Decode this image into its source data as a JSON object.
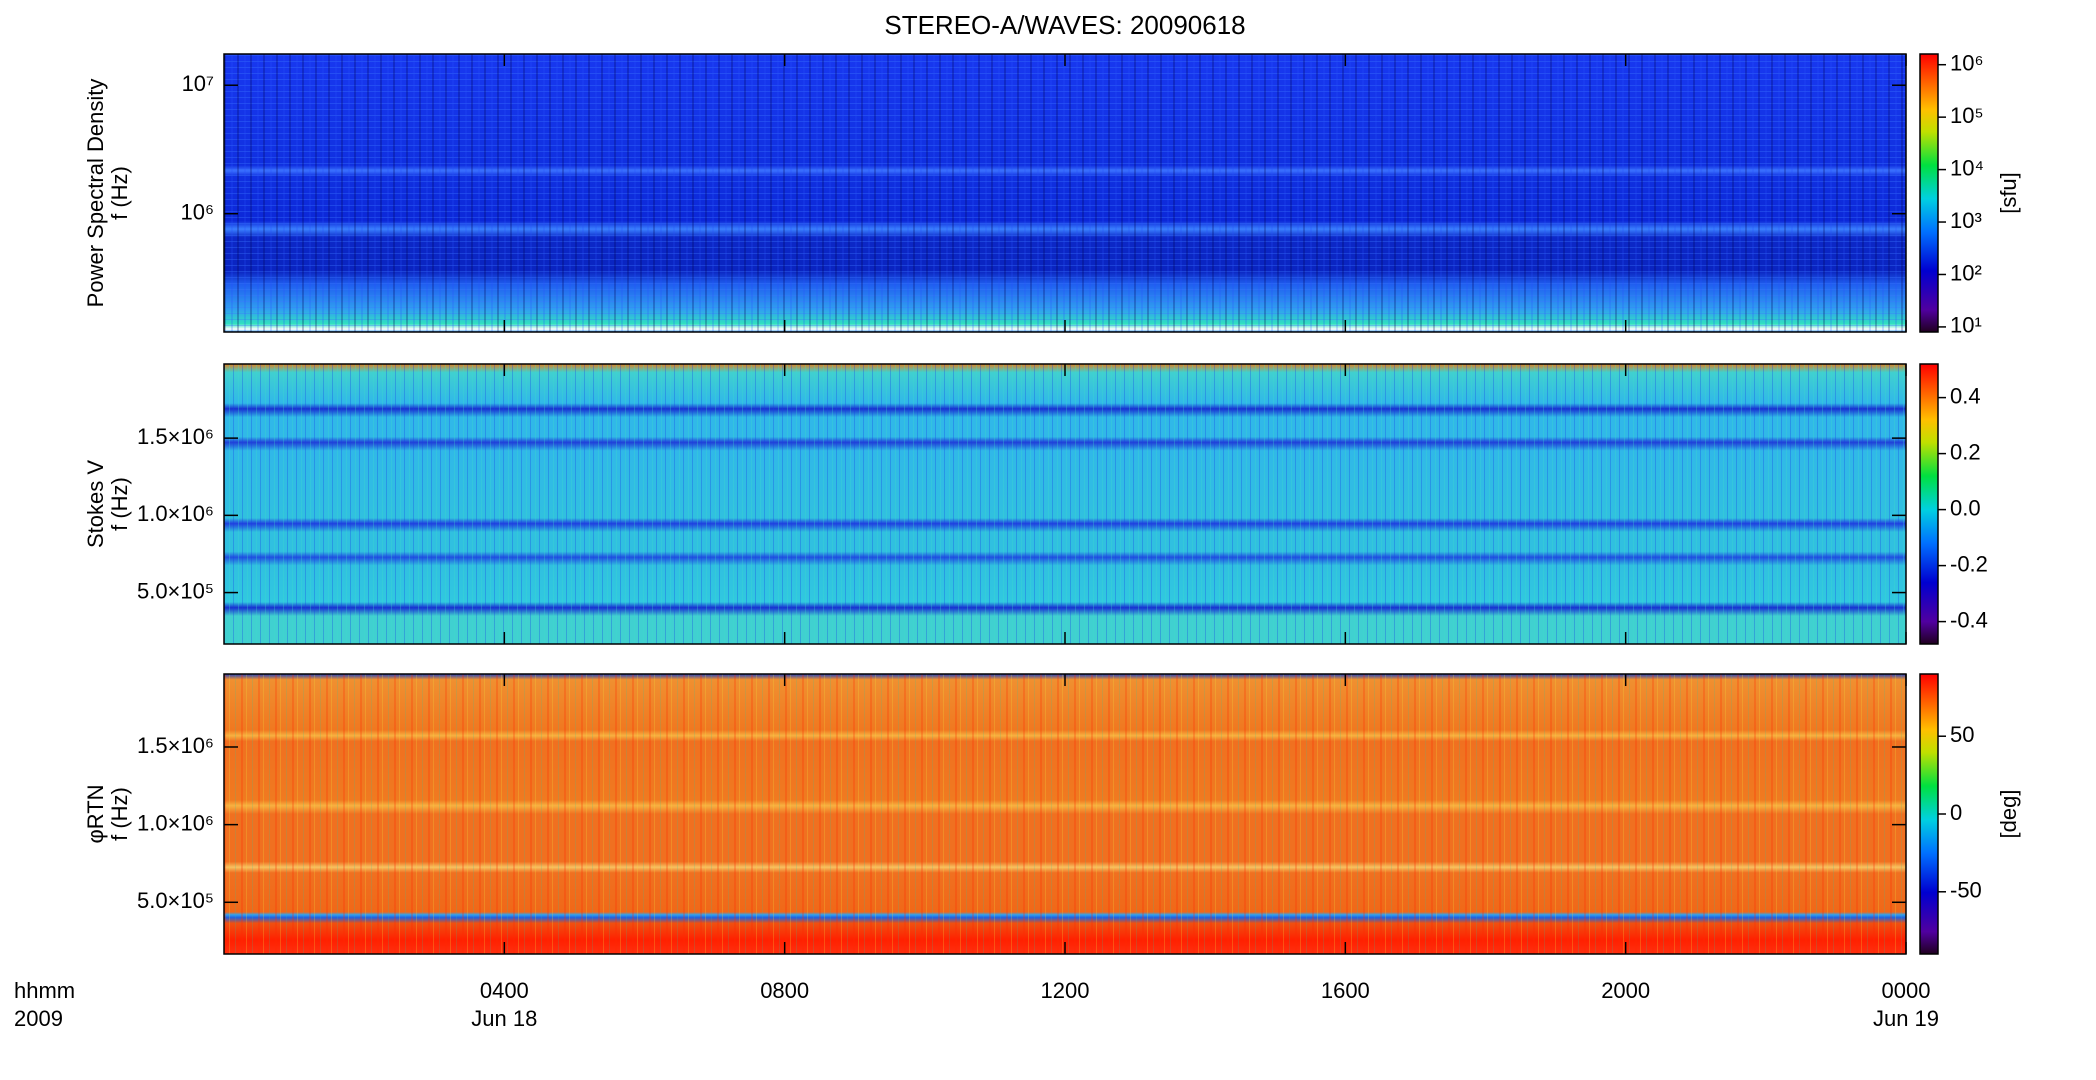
{
  "chart_data": {
    "type": "heatmap",
    "title": "STEREO-A/WAVES: 20090618",
    "xlabel": [
      "hhmm",
      "2009"
    ],
    "xlim": [
      0,
      24
    ],
    "xticks": [
      {
        "value": 4,
        "label": "0400"
      },
      {
        "value": 8,
        "label": "0800"
      },
      {
        "value": 12,
        "label": "1200"
      },
      {
        "value": 16,
        "label": "1600"
      },
      {
        "value": 20,
        "label": "2000"
      },
      {
        "value": 24,
        "label": "0000"
      }
    ],
    "xdate_labels": [
      {
        "value": 4,
        "label": "Jun 18"
      },
      {
        "value": 24,
        "label": "Jun 19"
      }
    ],
    "panels": [
      {
        "ylabel": [
          "Power Spectral Density",
          "f (Hz)"
        ],
        "ylim": [
          120000,
          17500000
        ],
        "ylog": true,
        "yticks": [
          {
            "value": 1000000,
            "label": "10⁶"
          },
          {
            "value": 10000000,
            "label": "10⁷"
          }
        ],
        "zlim": [
          8,
          1600000
        ],
        "zlog": true,
        "zticks": [
          {
            "value": 10,
            "label": "10¹"
          },
          {
            "value": 100,
            "label": "10²"
          },
          {
            "value": 1000,
            "label": "10³"
          },
          {
            "value": 10000,
            "label": "10⁴"
          },
          {
            "value": 100000,
            "label": "10⁵"
          },
          {
            "value": 1000000,
            "label": "10⁶"
          }
        ],
        "zlabel": "[sfu]"
      },
      {
        "ylabel": [
          "Stokes V",
          "f (Hz)"
        ],
        "ylim": [
          167000,
          1980000
        ],
        "ylog": false,
        "yticks": [
          {
            "value": 500000,
            "label": "5.0×10⁵"
          },
          {
            "value": 1000000,
            "label": "1.0×10⁶"
          },
          {
            "value": 1500000,
            "label": "1.5×10⁶"
          }
        ],
        "zlim": [
          -0.48,
          0.52
        ],
        "zlog": false,
        "zticks": [
          -0.4,
          -0.2,
          {
            "value": 0,
            "label": "0.0"
          },
          0.2,
          0.4
        ]
      },
      {
        "ylabel": [
          "φRTN",
          "f (Hz)"
        ],
        "ylim": [
          167000,
          1970000
        ],
        "ylog": false,
        "yticks": [
          {
            "value": 500000,
            "label": "5.0×10⁵"
          },
          {
            "value": 1000000,
            "label": "1.0×10⁶"
          },
          {
            "value": 1500000,
            "label": "1.5×10⁶"
          }
        ],
        "zlim": [
          -90,
          90
        ],
        "zlog": false,
        "zticks": [
          -50,
          0,
          50
        ],
        "zlabel": "[deg]"
      }
    ]
  }
}
